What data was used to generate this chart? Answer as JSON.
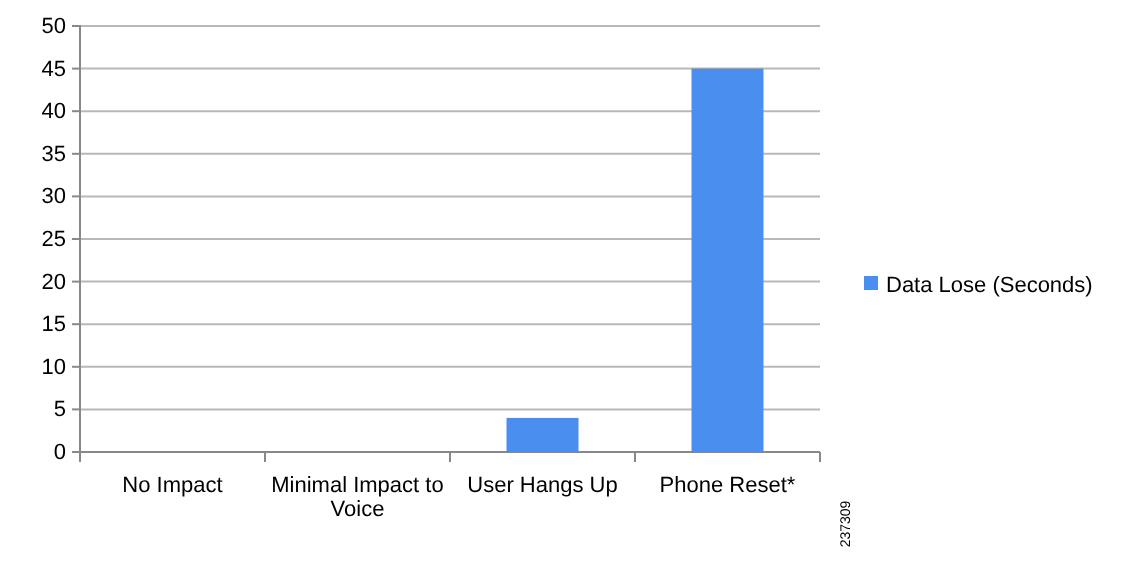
{
  "chart_data": {
    "type": "bar",
    "categories": [
      "No Impact",
      "Minimal Impact to Voice",
      "User Hangs Up",
      "Phone Reset*"
    ],
    "series": [
      {
        "name": "Data Lose (Seconds)",
        "color": "#4a8ff0",
        "values": [
          0,
          0,
          4,
          45
        ]
      }
    ],
    "ylim": [
      0,
      50
    ],
    "yticks": [
      0,
      5,
      10,
      15,
      20,
      25,
      30,
      35,
      40,
      45,
      50
    ],
    "grid": "y",
    "legend": "right",
    "annotations": [
      "237309"
    ]
  }
}
